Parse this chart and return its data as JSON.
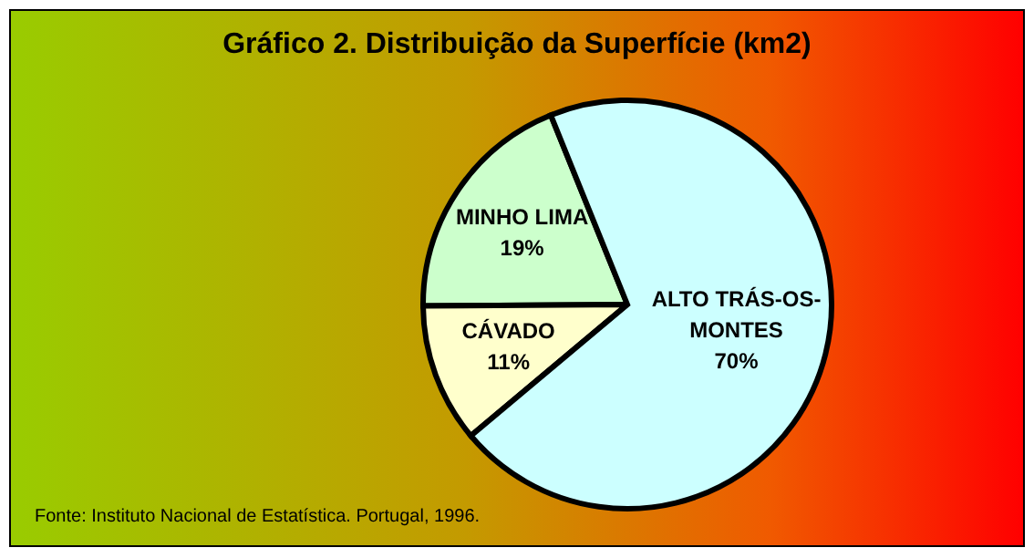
{
  "chart_data": {
    "type": "pie",
    "title": "Gráfico 2. Distribuição da Superfície (km2)",
    "categories": [
      "MINHO LIMA",
      "CÁVADO",
      "ALTO TRÁS-OS-MONTES"
    ],
    "values": [
      19,
      11,
      70
    ],
    "colors": [
      "#ccffcc",
      "#ffffcc",
      "#ccffff"
    ],
    "value_labels": [
      "19%",
      "11%",
      "70%"
    ],
    "legend": false,
    "annotations": [
      "Fonte: Instituto Nacional de Estatística. Portugal, 1996."
    ]
  }
}
